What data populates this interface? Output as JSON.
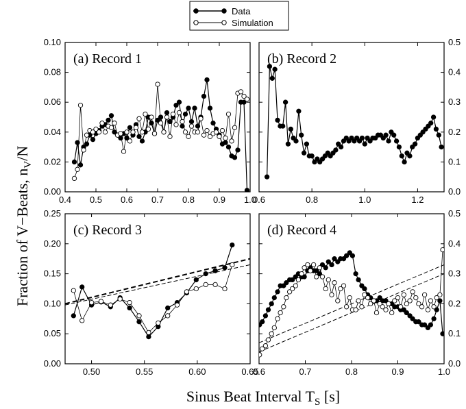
{
  "figure": {
    "ylabel": "Fraction of V−Beats, n",
    "ylabel_sub": "V",
    "ylabel_tail": "/N",
    "xlabel": "Sinus Beat Interval T",
    "xlabel_sub": "S",
    "xlabel_tail": " [s]"
  },
  "legend": {
    "data_label": "Data",
    "sim_label": "Simulation"
  },
  "chart_data": [
    {
      "type": "line",
      "title": "(a) Record 1",
      "xlim": [
        0.4,
        1.0
      ],
      "ylim": [
        0,
        0.1
      ],
      "xticks": [
        "0.4",
        "0.5",
        "0.6",
        "0.7",
        "0.8",
        "0.9",
        "1.0"
      ],
      "yticks": [
        "0.00",
        "0.02",
        "0.04",
        "0.06",
        "0.08",
        "0.10"
      ],
      "series": [
        {
          "name": "Data",
          "marker": "filled",
          "x": [
            0.43,
            0.44,
            0.45,
            0.46,
            0.47,
            0.48,
            0.49,
            0.5,
            0.51,
            0.52,
            0.53,
            0.54,
            0.55,
            0.56,
            0.57,
            0.58,
            0.59,
            0.6,
            0.61,
            0.62,
            0.63,
            0.64,
            0.65,
            0.66,
            0.67,
            0.68,
            0.69,
            0.7,
            0.71,
            0.72,
            0.73,
            0.74,
            0.75,
            0.76,
            0.77,
            0.78,
            0.79,
            0.8,
            0.81,
            0.82,
            0.83,
            0.84,
            0.85,
            0.86,
            0.87,
            0.88,
            0.89,
            0.9,
            0.91,
            0.92,
            0.93,
            0.94,
            0.95,
            0.96,
            0.97,
            0.98,
            0.99
          ],
          "y": [
            0.02,
            0.033,
            0.018,
            0.03,
            0.032,
            0.038,
            0.035,
            0.039,
            0.041,
            0.044,
            0.045,
            0.048,
            0.051,
            0.04,
            0.038,
            0.036,
            0.039,
            0.036,
            0.043,
            0.038,
            0.045,
            0.037,
            0.034,
            0.04,
            0.05,
            0.046,
            0.039,
            0.048,
            0.05,
            0.04,
            0.053,
            0.047,
            0.05,
            0.058,
            0.06,
            0.044,
            0.052,
            0.056,
            0.047,
            0.056,
            0.044,
            0.05,
            0.064,
            0.075,
            0.056,
            0.046,
            0.042,
            0.038,
            0.032,
            0.033,
            0.03,
            0.024,
            0.023,
            0.028,
            0.06,
            0.06,
            0.001
          ]
        },
        {
          "name": "Simulation",
          "marker": "open",
          "x": [
            0.43,
            0.44,
            0.45,
            0.46,
            0.47,
            0.48,
            0.49,
            0.5,
            0.51,
            0.52,
            0.53,
            0.54,
            0.55,
            0.56,
            0.57,
            0.58,
            0.59,
            0.6,
            0.61,
            0.62,
            0.63,
            0.64,
            0.65,
            0.66,
            0.67,
            0.68,
            0.69,
            0.7,
            0.71,
            0.72,
            0.73,
            0.74,
            0.75,
            0.76,
            0.77,
            0.78,
            0.79,
            0.8,
            0.81,
            0.82,
            0.83,
            0.84,
            0.85,
            0.86,
            0.87,
            0.88,
            0.89,
            0.9,
            0.91,
            0.92,
            0.93,
            0.94,
            0.95,
            0.96,
            0.97,
            0.98,
            0.99
          ],
          "y": [
            0.009,
            0.015,
            0.058,
            0.028,
            0.038,
            0.041,
            0.04,
            0.042,
            0.04,
            0.046,
            0.04,
            0.044,
            0.043,
            0.046,
            0.038,
            0.039,
            0.027,
            0.04,
            0.034,
            0.04,
            0.043,
            0.049,
            0.04,
            0.052,
            0.042,
            0.05,
            0.039,
            0.072,
            0.046,
            0.04,
            0.05,
            0.037,
            0.052,
            0.045,
            0.053,
            0.047,
            0.04,
            0.037,
            0.044,
            0.04,
            0.04,
            0.049,
            0.038,
            0.041,
            0.037,
            0.039,
            0.04,
            0.037,
            0.041,
            0.036,
            0.052,
            0.034,
            0.043,
            0.066,
            0.067,
            0.064,
            0.062
          ]
        }
      ]
    },
    {
      "type": "line",
      "title": "(b) Record 2",
      "xlim": [
        0.6,
        1.3
      ],
      "ylim": [
        0,
        0.5
      ],
      "xticks": [
        "0.6",
        "0.8",
        "1.0",
        "1.2"
      ],
      "yticks": [
        "0.0",
        "0.1",
        "0.2",
        "0.3",
        "0.4",
        "0.5"
      ],
      "series": [
        {
          "name": "Data",
          "marker": "filled",
          "x": [
            0.63,
            0.64,
            0.65,
            0.66,
            0.67,
            0.68,
            0.69,
            0.7,
            0.71,
            0.72,
            0.73,
            0.74,
            0.75,
            0.76,
            0.77,
            0.78,
            0.79,
            0.8,
            0.81,
            0.82,
            0.83,
            0.84,
            0.85,
            0.86,
            0.87,
            0.88,
            0.89,
            0.9,
            0.91,
            0.92,
            0.93,
            0.94,
            0.95,
            0.96,
            0.97,
            0.98,
            0.99,
            1.0,
            1.01,
            1.02,
            1.03,
            1.04,
            1.05,
            1.06,
            1.07,
            1.08,
            1.09,
            1.1,
            1.11,
            1.12,
            1.13,
            1.14,
            1.15,
            1.16,
            1.17,
            1.18,
            1.19,
            1.2,
            1.21,
            1.22,
            1.23,
            1.24,
            1.25,
            1.26,
            1.27,
            1.28,
            1.29
          ],
          "y": [
            0.05,
            0.42,
            0.38,
            0.41,
            0.24,
            0.22,
            0.22,
            0.3,
            0.16,
            0.21,
            0.18,
            0.17,
            0.27,
            0.19,
            0.13,
            0.16,
            0.12,
            0.12,
            0.1,
            0.11,
            0.1,
            0.11,
            0.12,
            0.13,
            0.12,
            0.13,
            0.14,
            0.16,
            0.15,
            0.17,
            0.18,
            0.17,
            0.18,
            0.17,
            0.18,
            0.17,
            0.18,
            0.16,
            0.18,
            0.17,
            0.18,
            0.18,
            0.19,
            0.19,
            0.18,
            0.19,
            0.17,
            0.2,
            0.19,
            0.17,
            0.15,
            0.12,
            0.1,
            0.13,
            0.12,
            0.15,
            0.16,
            0.18,
            0.19,
            0.2,
            0.21,
            0.22,
            0.23,
            0.25,
            0.21,
            0.19,
            0.15
          ]
        }
      ]
    },
    {
      "type": "line",
      "title": "(c) Record 3",
      "xlim": [
        0.475,
        0.65
      ],
      "ylim": [
        0,
        0.25
      ],
      "xticks": [
        "0.50",
        "0.55",
        "0.60",
        "0.65"
      ],
      "yticks": [
        "0.00",
        "0.05",
        "0.10",
        "0.15",
        "0.20",
        "0.25"
      ],
      "series": [
        {
          "name": "Data",
          "marker": "filled",
          "x": [
            0.483,
            0.491,
            0.5,
            0.509,
            0.518,
            0.527,
            0.536,
            0.545,
            0.554,
            0.563,
            0.572,
            0.581,
            0.59,
            0.599,
            0.608,
            0.617,
            0.626,
            0.633
          ],
          "y": [
            0.08,
            0.128,
            0.098,
            0.103,
            0.095,
            0.11,
            0.093,
            0.07,
            0.045,
            0.062,
            0.093,
            0.102,
            0.118,
            0.14,
            0.15,
            0.155,
            0.16,
            0.198
          ]
        },
        {
          "name": "Simulation",
          "marker": "open",
          "x": [
            0.483,
            0.491,
            0.5,
            0.509,
            0.518,
            0.527,
            0.536,
            0.545,
            0.554,
            0.563,
            0.572,
            0.581,
            0.59,
            0.599,
            0.608,
            0.617,
            0.626,
            0.633
          ],
          "y": [
            0.122,
            0.072,
            0.102,
            0.104,
            0.098,
            0.108,
            0.102,
            0.08,
            0.052,
            0.068,
            0.08,
            0.098,
            0.12,
            0.125,
            0.132,
            0.132,
            0.125,
            0.165
          ]
        }
      ],
      "fits": [
        {
          "style": "thick-dashed",
          "x": [
            0.475,
            0.65
          ],
          "y": [
            0.1,
            0.175
          ]
        },
        {
          "style": "thin-dashed",
          "x": [
            0.475,
            0.65
          ],
          "y": [
            0.098,
            0.165
          ]
        }
      ]
    },
    {
      "type": "line",
      "title": "(d) Record 4",
      "xlim": [
        0.6,
        1.0
      ],
      "ylim": [
        0,
        0.5
      ],
      "xticks": [
        "0.6",
        "0.7",
        "0.8",
        "0.9",
        "1.0"
      ],
      "yticks": [
        "0.0",
        "0.1",
        "0.2",
        "0.3",
        "0.4",
        "0.5"
      ],
      "series": [
        {
          "name": "Data",
          "marker": "filled",
          "x": [
            0.601,
            0.607,
            0.614,
            0.62,
            0.627,
            0.633,
            0.64,
            0.646,
            0.653,
            0.659,
            0.666,
            0.672,
            0.679,
            0.685,
            0.692,
            0.698,
            0.705,
            0.711,
            0.718,
            0.724,
            0.731,
            0.737,
            0.744,
            0.75,
            0.757,
            0.763,
            0.77,
            0.776,
            0.783,
            0.789,
            0.796,
            0.802,
            0.809,
            0.815,
            0.822,
            0.828,
            0.835,
            0.841,
            0.848,
            0.854,
            0.861,
            0.867,
            0.874,
            0.88,
            0.887,
            0.893,
            0.9,
            0.906,
            0.913,
            0.919,
            0.926,
            0.932,
            0.939,
            0.945,
            0.952,
            0.958,
            0.965,
            0.971,
            0.978,
            0.984,
            0.991,
            0.997
          ],
          "y": [
            0.13,
            0.14,
            0.16,
            0.18,
            0.2,
            0.22,
            0.24,
            0.26,
            0.26,
            0.27,
            0.28,
            0.28,
            0.29,
            0.3,
            0.29,
            0.29,
            0.31,
            0.32,
            0.31,
            0.31,
            0.3,
            0.33,
            0.32,
            0.34,
            0.33,
            0.35,
            0.34,
            0.35,
            0.35,
            0.36,
            0.37,
            0.36,
            0.3,
            0.28,
            0.26,
            0.25,
            0.23,
            0.22,
            0.21,
            0.21,
            0.22,
            0.21,
            0.21,
            0.2,
            0.2,
            0.19,
            0.19,
            0.18,
            0.18,
            0.17,
            0.16,
            0.15,
            0.14,
            0.14,
            0.13,
            0.13,
            0.12,
            0.13,
            0.15,
            0.18,
            0.21,
            0.1
          ]
        },
        {
          "name": "Simulation",
          "marker": "open",
          "x": [
            0.601,
            0.607,
            0.614,
            0.62,
            0.627,
            0.633,
            0.64,
            0.646,
            0.653,
            0.659,
            0.666,
            0.672,
            0.679,
            0.685,
            0.692,
            0.698,
            0.705,
            0.711,
            0.718,
            0.724,
            0.731,
            0.737,
            0.744,
            0.75,
            0.757,
            0.763,
            0.77,
            0.776,
            0.783,
            0.789,
            0.796,
            0.802,
            0.809,
            0.815,
            0.822,
            0.828,
            0.835,
            0.841,
            0.848,
            0.854,
            0.861,
            0.867,
            0.874,
            0.88,
            0.887,
            0.893,
            0.9,
            0.906,
            0.913,
            0.919,
            0.926,
            0.932,
            0.939,
            0.945,
            0.952,
            0.958,
            0.965,
            0.971,
            0.978,
            0.984,
            0.991,
            0.997
          ],
          "y": [
            0.03,
            0.05,
            0.06,
            0.08,
            0.1,
            0.12,
            0.15,
            0.17,
            0.19,
            0.22,
            0.24,
            0.25,
            0.26,
            0.28,
            0.3,
            0.32,
            0.33,
            0.31,
            0.33,
            0.29,
            0.32,
            0.29,
            0.25,
            0.28,
            0.23,
            0.27,
            0.21,
            0.25,
            0.26,
            0.19,
            0.22,
            0.18,
            0.18,
            0.21,
            0.19,
            0.23,
            0.22,
            0.2,
            0.21,
            0.17,
            0.2,
            0.19,
            0.18,
            0.2,
            0.17,
            0.21,
            0.22,
            0.19,
            0.23,
            0.2,
            0.21,
            0.24,
            0.22,
            0.2,
            0.19,
            0.23,
            0.18,
            0.21,
            0.19,
            0.22,
            0.23,
            0.38
          ]
        }
      ],
      "fits": [
        {
          "style": "thin-dashed",
          "x": [
            0.6,
            1.0
          ],
          "y": [
            0.07,
            0.33
          ]
        },
        {
          "style": "thin-dashed",
          "x": [
            0.6,
            1.0
          ],
          "y": [
            0.04,
            0.3
          ]
        }
      ]
    }
  ]
}
